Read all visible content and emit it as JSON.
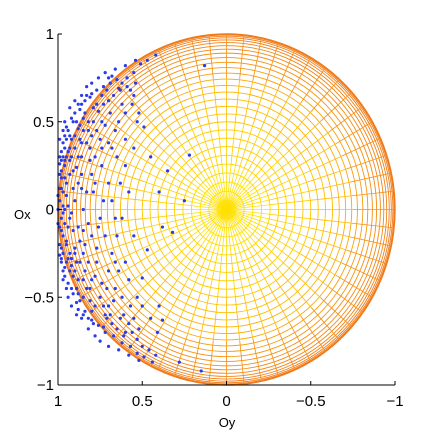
{
  "chart_data": {
    "type": "scatter",
    "title": "",
    "xlabel": "Oy",
    "ylabel": "Ox",
    "x_ticks": [
      {
        "value": 1,
        "label": "1"
      },
      {
        "value": 0.5,
        "label": "0.5"
      },
      {
        "value": 0,
        "label": "0"
      },
      {
        "value": -0.5,
        "label": "−0.5"
      },
      {
        "value": -1,
        "label": "−1"
      }
    ],
    "y_ticks": [
      {
        "value": 1,
        "label": "1"
      },
      {
        "value": 0.5,
        "label": "0.5"
      },
      {
        "value": 0,
        "label": "0"
      },
      {
        "value": -0.5,
        "label": "−0.5"
      },
      {
        "value": -1,
        "label": "−1"
      }
    ],
    "xlim": [
      1,
      -1
    ],
    "ylim": [
      -1,
      1
    ],
    "x_reversed": true,
    "grid": false,
    "background": "unit-sphere mesh (yellow center to orange rim)",
    "colors": {
      "points": "#2b3be8",
      "sphere_center": "#ffe800",
      "sphere_mid": "#ffc000",
      "sphere_rim": "#f07a1a",
      "axes": "#000000"
    },
    "series": [
      {
        "points": [
          [
            0.13,
            0.82
          ],
          [
            0.49,
            0.47
          ],
          [
            0.22,
            0.31
          ],
          [
            0.25,
            0.05
          ],
          [
            0.32,
            -0.13
          ],
          [
            0.15,
            -0.92
          ],
          [
            0.28,
            -0.87
          ],
          [
            0.41,
            -0.7
          ],
          [
            0.68,
            0.76
          ],
          [
            0.64,
            0.69
          ],
          [
            0.59,
            0.7
          ],
          [
            0.7,
            0.75
          ],
          [
            0.62,
            0.6
          ],
          [
            0.53,
            0.5
          ],
          [
            0.45,
            0.3
          ],
          [
            0.35,
            0.22
          ],
          [
            0.4,
            0.1
          ],
          [
            0.38,
            -0.1
          ],
          [
            0.47,
            -0.23
          ],
          [
            0.5,
            -0.39
          ],
          [
            0.53,
            -0.5
          ],
          [
            0.45,
            -0.62
          ],
          [
            0.38,
            -0.63
          ],
          [
            0.55,
            -0.62
          ],
          [
            0.6,
            -0.7
          ],
          [
            0.5,
            -0.78
          ],
          [
            0.46,
            -0.8
          ],
          [
            0.42,
            -0.83
          ],
          [
            0.4,
            -0.55
          ],
          [
            0.55,
            0.35
          ],
          [
            0.6,
            0.25
          ],
          [
            0.58,
            0.1
          ],
          [
            0.62,
            -0.05
          ],
          [
            0.55,
            -0.15
          ],
          [
            0.6,
            -0.3
          ],
          [
            0.66,
            -0.45
          ],
          [
            0.7,
            -0.55
          ],
          [
            0.63,
            -0.62
          ],
          [
            0.68,
            -0.65
          ],
          [
            0.72,
            -0.6
          ],
          [
            0.73,
            -0.67
          ],
          [
            0.75,
            -0.5
          ],
          [
            0.78,
            -0.55
          ],
          [
            0.8,
            -0.58
          ],
          [
            0.81,
            -0.45
          ],
          [
            0.85,
            -0.5
          ],
          [
            0.88,
            -0.4
          ],
          [
            0.84,
            -0.35
          ],
          [
            0.89,
            -0.3
          ],
          [
            0.92,
            -0.28
          ],
          [
            0.93,
            -0.35
          ],
          [
            0.95,
            -0.2
          ],
          [
            0.9,
            -0.22
          ],
          [
            0.97,
            -0.15
          ],
          [
            0.94,
            -0.1
          ],
          [
            0.98,
            -0.05
          ],
          [
            0.96,
            0.0
          ],
          [
            0.99,
            0.05
          ],
          [
            0.97,
            0.1
          ],
          [
            0.95,
            0.15
          ],
          [
            0.98,
            0.18
          ],
          [
            0.93,
            0.2
          ],
          [
            0.96,
            0.25
          ],
          [
            0.92,
            0.3
          ],
          [
            0.9,
            0.35
          ],
          [
            0.94,
            0.33
          ],
          [
            0.87,
            0.4
          ],
          [
            0.85,
            0.45
          ],
          [
            0.88,
            0.46
          ],
          [
            0.82,
            0.5
          ],
          [
            0.84,
            0.55
          ],
          [
            0.79,
            0.58
          ],
          [
            0.77,
            0.6
          ],
          [
            0.74,
            0.65
          ],
          [
            0.76,
            0.56
          ],
          [
            0.8,
            0.42
          ],
          [
            0.83,
            0.38
          ],
          [
            0.86,
            0.3
          ],
          [
            0.89,
            0.24
          ],
          [
            0.91,
            0.12
          ],
          [
            0.9,
            0.05
          ],
          [
            0.92,
            -0.02
          ],
          [
            0.91,
            -0.12
          ],
          [
            0.87,
            -0.18
          ],
          [
            0.85,
            -0.25
          ],
          [
            0.82,
            -0.3
          ],
          [
            0.78,
            -0.38
          ],
          [
            0.74,
            -0.42
          ],
          [
            0.7,
            -0.35
          ],
          [
            0.68,
            -0.25
          ],
          [
            0.72,
            -0.15
          ],
          [
            0.75,
            -0.05
          ],
          [
            0.73,
            0.05
          ],
          [
            0.7,
            0.15
          ],
          [
            0.74,
            0.25
          ],
          [
            0.7,
            0.38
          ],
          [
            0.66,
            0.45
          ],
          [
            0.72,
            0.48
          ],
          [
            0.78,
            0.3
          ],
          [
            0.8,
            0.2
          ],
          [
            0.83,
            0.1
          ],
          [
            0.85,
            0.0
          ],
          [
            0.82,
            -0.08
          ],
          [
            0.8,
            -0.15
          ],
          [
            0.77,
            -0.22
          ],
          [
            0.99,
            0.3
          ],
          [
            0.99,
            0.4
          ],
          [
            0.98,
            -0.3
          ],
          [
            0.97,
            -0.4
          ],
          [
            0.96,
            0.5
          ],
          [
            0.95,
            -0.45
          ],
          [
            0.93,
            0.58
          ],
          [
            0.92,
            -0.55
          ],
          [
            0.9,
            0.62
          ],
          [
            0.89,
            -0.6
          ],
          [
            0.86,
            0.65
          ],
          [
            0.86,
            -0.62
          ],
          [
            0.83,
            0.7
          ],
          [
            0.82,
            -0.68
          ],
          [
            0.8,
            0.72
          ],
          [
            0.78,
            -0.72
          ],
          [
            0.76,
            0.75
          ],
          [
            0.75,
            -0.75
          ],
          [
            0.72,
            0.78
          ],
          [
            0.7,
            -0.78
          ],
          [
            0.66,
            0.8
          ],
          [
            0.64,
            -0.8
          ],
          [
            0.6,
            0.82
          ],
          [
            0.58,
            -0.83
          ],
          [
            0.54,
            0.85
          ],
          [
            0.52,
            -0.86
          ],
          [
            0.99,
            -0.1
          ],
          [
            0.99,
            0.12
          ],
          [
            0.98,
            0.22
          ],
          [
            0.98,
            -0.22
          ],
          [
            0.97,
            0.38
          ],
          [
            0.96,
            -0.33
          ],
          [
            0.94,
            0.45
          ],
          [
            0.94,
            -0.42
          ],
          [
            0.91,
            0.5
          ],
          [
            0.91,
            -0.48
          ],
          [
            0.87,
            0.57
          ],
          [
            0.87,
            -0.52
          ],
          [
            0.84,
            0.62
          ],
          [
            0.84,
            -0.58
          ],
          [
            0.81,
            0.64
          ],
          [
            0.8,
            -0.63
          ],
          [
            0.77,
            0.68
          ],
          [
            0.76,
            -0.66
          ],
          [
            0.73,
            0.7
          ],
          [
            0.72,
            -0.7
          ],
          [
            0.69,
            0.72
          ],
          [
            0.67,
            -0.72
          ],
          [
            0.65,
            0.74
          ],
          [
            0.62,
            -0.76
          ],
          [
            0.95,
            0.08
          ],
          [
            0.93,
            -0.05
          ],
          [
            0.96,
            -0.08
          ],
          [
            0.94,
            0.02
          ],
          [
            0.88,
            0.15
          ],
          [
            0.86,
            0.12
          ],
          [
            0.88,
            -0.1
          ],
          [
            0.85,
            -0.12
          ],
          [
            0.81,
            0.28
          ],
          [
            0.79,
            0.1
          ],
          [
            0.77,
            -0.3
          ],
          [
            0.74,
            0.35
          ],
          [
            0.71,
            -0.45
          ],
          [
            0.69,
            0.55
          ],
          [
            0.67,
            -0.52
          ],
          [
            0.64,
            0.5
          ],
          [
            0.62,
            -0.5
          ],
          [
            0.6,
            0.4
          ],
          [
            0.58,
            -0.4
          ],
          [
            0.56,
            0.6
          ],
          [
            0.57,
            -0.55
          ],
          [
            0.52,
            0.55
          ],
          [
            0.5,
            -0.55
          ],
          [
            0.65,
            0.3
          ],
          [
            0.64,
            -0.35
          ],
          [
            0.63,
            0.15
          ],
          [
            0.65,
            -0.15
          ],
          [
            0.68,
            0.05
          ],
          [
            0.66,
            -0.05
          ],
          [
            0.7,
            0.62
          ],
          [
            1.0,
            0.0
          ],
          [
            1.0,
            0.08
          ],
          [
            1.0,
            -0.08
          ],
          [
            0.99,
            0.2
          ],
          [
            0.99,
            -0.2
          ],
          [
            0.98,
            0.28
          ],
          [
            0.98,
            -0.28
          ],
          [
            0.97,
            0.3
          ],
          [
            0.96,
            0.35
          ],
          [
            0.95,
            0.4
          ],
          [
            0.93,
            0.42
          ],
          [
            0.92,
            0.4
          ],
          [
            0.97,
            -0.25
          ],
          [
            0.95,
            -0.3
          ],
          [
            0.93,
            -0.25
          ],
          [
            0.91,
            -0.38
          ],
          [
            0.89,
            -0.45
          ],
          [
            0.87,
            0.48
          ],
          [
            0.85,
            0.52
          ],
          [
            0.83,
            -0.45
          ],
          [
            0.81,
            -0.52
          ],
          [
            0.79,
            0.5
          ],
          [
            0.77,
            0.45
          ],
          [
            0.75,
            0.4
          ],
          [
            0.73,
            -0.55
          ],
          [
            0.71,
            0.68
          ],
          [
            0.69,
            -0.6
          ],
          [
            0.67,
            0.65
          ],
          [
            0.65,
            -0.68
          ],
          [
            0.63,
            0.68
          ],
          [
            0.61,
            -0.72
          ],
          [
            0.59,
            0.75
          ],
          [
            0.57,
            -0.78
          ],
          [
            0.55,
            0.78
          ],
          [
            0.53,
            -0.82
          ],
          [
            0.51,
            0.83
          ],
          [
            0.49,
            -0.84
          ],
          [
            0.47,
            0.85
          ],
          [
            0.44,
            -0.87
          ],
          [
            0.42,
            0.88
          ],
          [
            0.99,
            0.26
          ],
          [
            0.99,
            -0.26
          ],
          [
            0.98,
            0.33
          ],
          [
            0.97,
            -0.35
          ],
          [
            0.96,
            0.42
          ],
          [
            0.96,
            -0.38
          ],
          [
            0.95,
            0.47
          ],
          [
            0.94,
            -0.5
          ],
          [
            0.92,
            0.52
          ],
          [
            0.92,
            -0.45
          ],
          [
            0.9,
            0.55
          ],
          [
            0.89,
            -0.53
          ],
          [
            0.88,
            0.6
          ],
          [
            0.88,
            -0.57
          ],
          [
            0.86,
            0.6
          ],
          [
            0.85,
            -0.6
          ],
          [
            0.83,
            0.65
          ],
          [
            0.82,
            -0.62
          ],
          [
            0.8,
            0.66
          ],
          [
            0.79,
            -0.65
          ],
          [
            0.96,
            0.18
          ],
          [
            0.95,
            -0.18
          ],
          [
            0.93,
            0.28
          ],
          [
            0.92,
            -0.32
          ],
          [
            0.9,
            0.42
          ],
          [
            0.9,
            -0.35
          ],
          [
            0.89,
            0.5
          ],
          [
            0.88,
            -0.48
          ],
          [
            0.86,
            0.38
          ],
          [
            0.85,
            -0.4
          ],
          [
            0.97,
            0.45
          ],
          [
            0.98,
            0.12
          ],
          [
            0.98,
            -0.12
          ],
          [
            0.97,
            0.02
          ],
          [
            0.97,
            -0.02
          ],
          [
            0.96,
            0.28
          ],
          [
            0.95,
            0.3
          ],
          [
            0.94,
            -0.28
          ],
          [
            0.93,
            0.35
          ],
          [
            0.91,
            0.22
          ],
          [
            0.9,
            -0.25
          ],
          [
            0.88,
            0.3
          ],
          [
            0.87,
            -0.3
          ],
          [
            0.86,
            0.2
          ],
          [
            0.84,
            -0.2
          ],
          [
            0.82,
            0.45
          ],
          [
            0.81,
            0.35
          ],
          [
            0.8,
            -0.4
          ],
          [
            0.78,
            0.15
          ],
          [
            0.76,
            -0.1
          ],
          [
            0.74,
            0.5
          ],
          [
            0.73,
            0.6
          ],
          [
            0.71,
            -0.62
          ],
          [
            0.68,
            0.35
          ],
          [
            0.66,
            -0.3
          ],
          [
            0.6,
            0.55
          ],
          [
            0.61,
            -0.6
          ],
          [
            0.57,
            0.68
          ],
          [
            0.56,
            -0.7
          ],
          [
            0.54,
            0.72
          ],
          [
            0.53,
            -0.74
          ],
          [
            0.62,
            0.72
          ],
          [
            0.58,
            -0.65
          ],
          [
            0.55,
            0.65
          ],
          [
            0.52,
            -0.68
          ]
        ]
      }
    ]
  }
}
